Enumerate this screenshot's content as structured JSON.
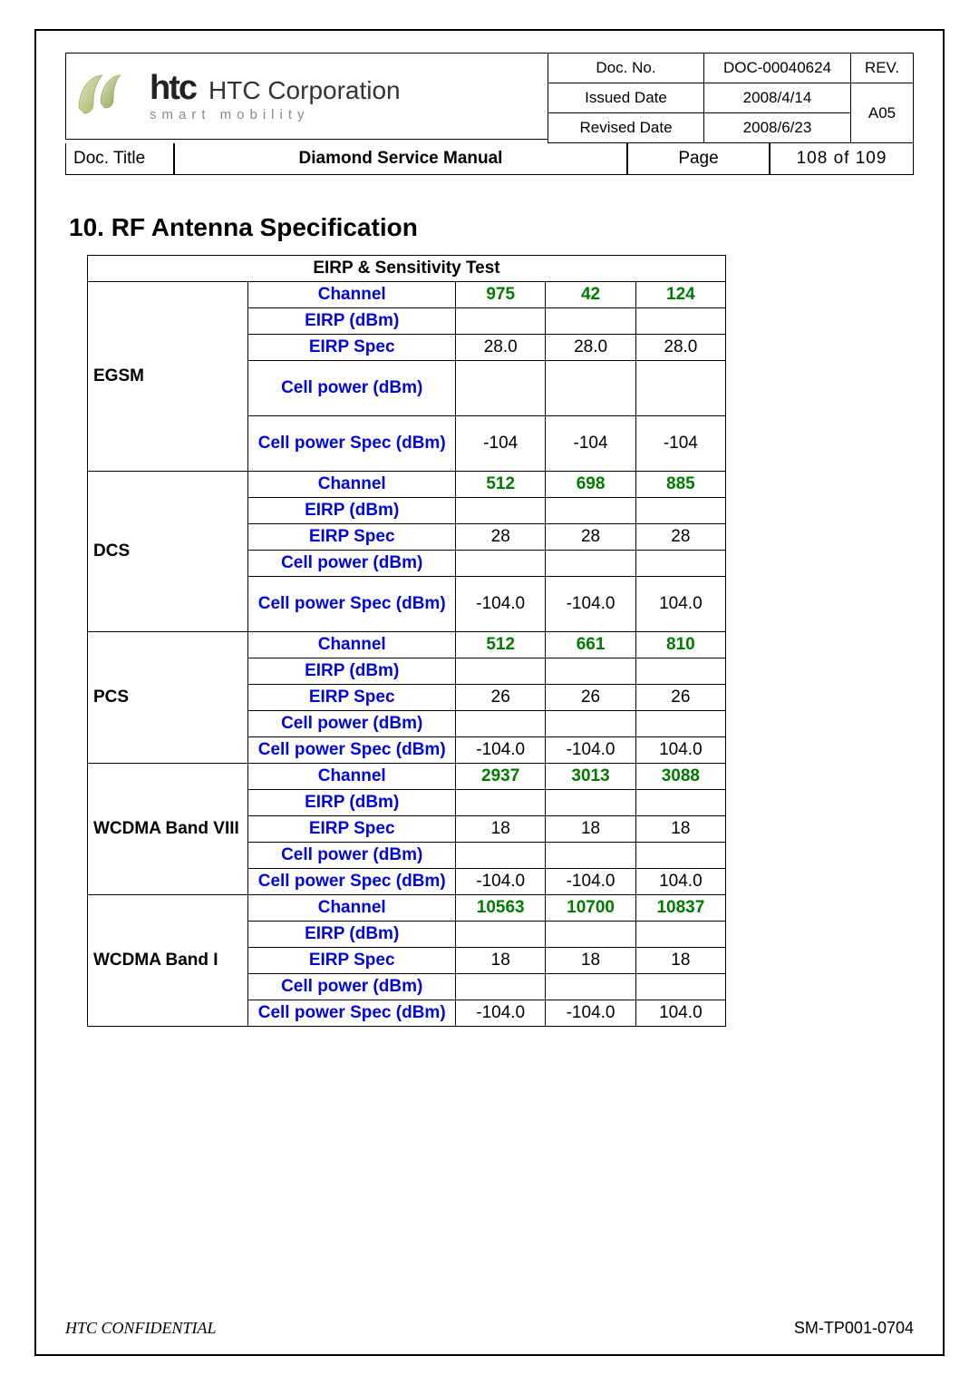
{
  "header": {
    "brand": "htc",
    "tagline": "smart mobility",
    "corp": "HTC Corporation",
    "doc_no_label": "Doc. No.",
    "doc_no": "DOC-00040624",
    "rev_label": "REV.",
    "rev": "A05",
    "issued_label": "Issued Date",
    "issued": "2008/4/14",
    "revised_label": "Revised Date",
    "revised": "2008/6/23",
    "title_label": "Doc. Title",
    "title": "Diamond Service Manual",
    "page_label": "Page",
    "page": "108  of  109"
  },
  "section_title": "10. RF Antenna Specification",
  "table_caption": "EIRP & Sensitivity Test",
  "row_labels": {
    "channel": "Channel",
    "eirp": "EIRP (dBm)",
    "eirp_spec": "EIRP Spec",
    "cell_power": "Cell power (dBm)",
    "cell_power_spec": "Cell power Spec (dBm)"
  },
  "bands": [
    {
      "name": "EGSM",
      "channels": [
        "975",
        "42",
        "124"
      ],
      "eirp": [
        "",
        "",
        ""
      ],
      "eirp_spec": [
        "28.0",
        "28.0",
        "28.0"
      ],
      "cell_power": [
        "",
        "",
        ""
      ],
      "cell_power_spec": [
        "-104",
        "-104",
        "-104"
      ],
      "tall_cp": true,
      "tall_cps": true
    },
    {
      "name": "DCS",
      "channels": [
        "512",
        "698",
        "885"
      ],
      "eirp": [
        "",
        "",
        ""
      ],
      "eirp_spec": [
        "28",
        "28",
        "28"
      ],
      "cell_power": [
        "",
        "",
        ""
      ],
      "cell_power_spec": [
        "-104.0",
        "-104.0",
        "104.0"
      ],
      "tall_cps": true
    },
    {
      "name": "PCS",
      "channels": [
        "512",
        "661",
        "810"
      ],
      "eirp": [
        "",
        "",
        ""
      ],
      "eirp_spec": [
        "26",
        "26",
        "26"
      ],
      "cell_power": [
        "",
        "",
        ""
      ],
      "cell_power_spec": [
        "-104.0",
        "-104.0",
        "104.0"
      ]
    },
    {
      "name": "WCDMA Band VIII",
      "channels": [
        "2937",
        "3013",
        "3088"
      ],
      "eirp": [
        "",
        "",
        ""
      ],
      "eirp_spec": [
        "18",
        "18",
        "18"
      ],
      "cell_power": [
        "",
        "",
        ""
      ],
      "cell_power_spec": [
        "-104.0",
        "-104.0",
        "104.0"
      ]
    },
    {
      "name": "WCDMA Band I",
      "channels": [
        "10563",
        "10700",
        "10837"
      ],
      "eirp": [
        "",
        "",
        ""
      ],
      "eirp_spec": [
        "18",
        "18",
        "18"
      ],
      "cell_power": [
        "",
        "",
        ""
      ],
      "cell_power_spec": [
        "-104.0",
        "-104.0",
        "104.0"
      ]
    }
  ],
  "footer": {
    "confidential": "HTC CONFIDENTIAL",
    "code": "SM-TP001-0704"
  },
  "colors": {
    "label_blue": "#0006d8",
    "value_green": "#007a00"
  }
}
